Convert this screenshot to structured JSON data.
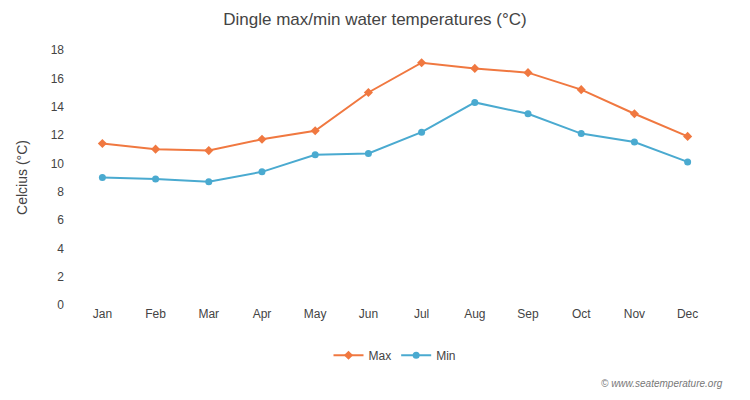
{
  "chart_data": {
    "type": "line",
    "title": "Dingle max/min water temperatures (°C)",
    "ylabel": "Celcius (°C)",
    "categories": [
      "Jan",
      "Feb",
      "Mar",
      "Apr",
      "May",
      "Jun",
      "Jul",
      "Aug",
      "Sep",
      "Oct",
      "Nov",
      "Dec"
    ],
    "series": [
      {
        "name": "Max",
        "color": "#f07840",
        "marker": "diamond",
        "values": [
          11.4,
          11.0,
          10.9,
          11.7,
          12.3,
          15.0,
          17.1,
          16.7,
          16.4,
          15.2,
          13.5,
          11.9
        ]
      },
      {
        "name": "Min",
        "color": "#4aaad0",
        "marker": "circle",
        "values": [
          9.0,
          8.9,
          8.7,
          9.4,
          10.6,
          10.7,
          12.2,
          14.3,
          13.5,
          12.1,
          11.5,
          10.1
        ]
      }
    ],
    "ylim": [
      0,
      18
    ],
    "yticks": [
      0,
      2,
      4,
      6,
      8,
      10,
      12,
      14,
      16,
      18
    ],
    "grid": false,
    "legend": "bottom",
    "annotations": [
      "© www.seatemperature.org"
    ]
  }
}
